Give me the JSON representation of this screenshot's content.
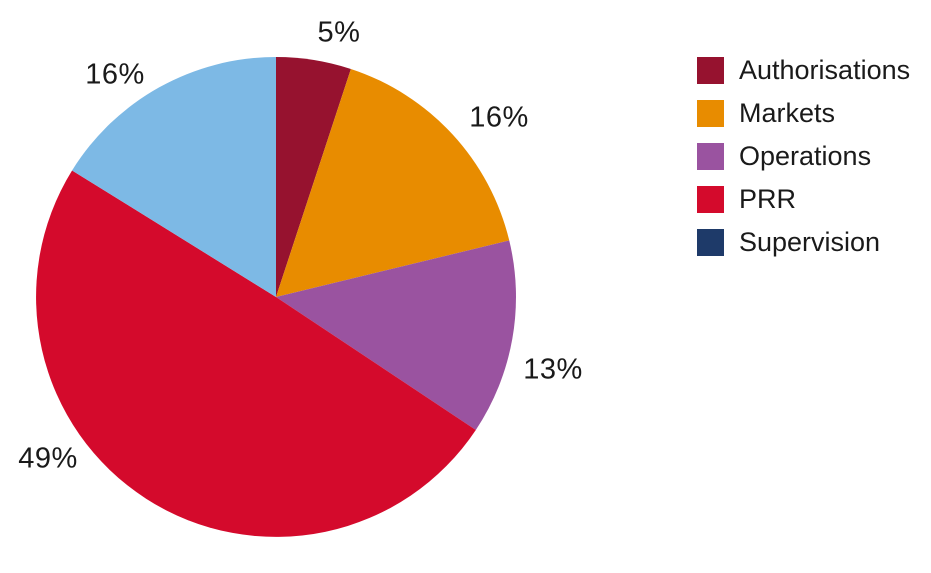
{
  "chart_data": {
    "type": "pie",
    "title": "",
    "categories": [
      "Authorisations",
      "Markets",
      "Operations",
      "PRR",
      "Supervision"
    ],
    "values": [
      5,
      16,
      13,
      49,
      16
    ],
    "value_unit": "percent",
    "start_angle": "12-oclock",
    "direction": "clockwise",
    "legend_position": "right",
    "slices": [
      {
        "name": "Authorisations",
        "value": 5,
        "label": "5%",
        "color": "#96122F"
      },
      {
        "name": "Markets",
        "value": 16,
        "label": "16%",
        "color": "#E88C00"
      },
      {
        "name": "Operations",
        "value": 13,
        "label": "13%",
        "color": "#9A53A0"
      },
      {
        "name": "PRR",
        "value": 49,
        "label": "49%",
        "color": "#D40A2C"
      },
      {
        "name": "Supervision",
        "value": 16,
        "label": "16%",
        "color": "#7DB9E5"
      }
    ]
  },
  "legend": {
    "items": [
      {
        "label": "Authorisations",
        "color": "#96122F"
      },
      {
        "label": "Markets",
        "color": "#E88C00"
      },
      {
        "label": "Operations",
        "color": "#9A53A0"
      },
      {
        "label": "PRR",
        "color": "#D40A2C"
      },
      {
        "label": "Supervision",
        "color": "#1E3A69"
      }
    ]
  },
  "colors": {
    "text": "#1a1a1a",
    "background": "#ffffff"
  }
}
